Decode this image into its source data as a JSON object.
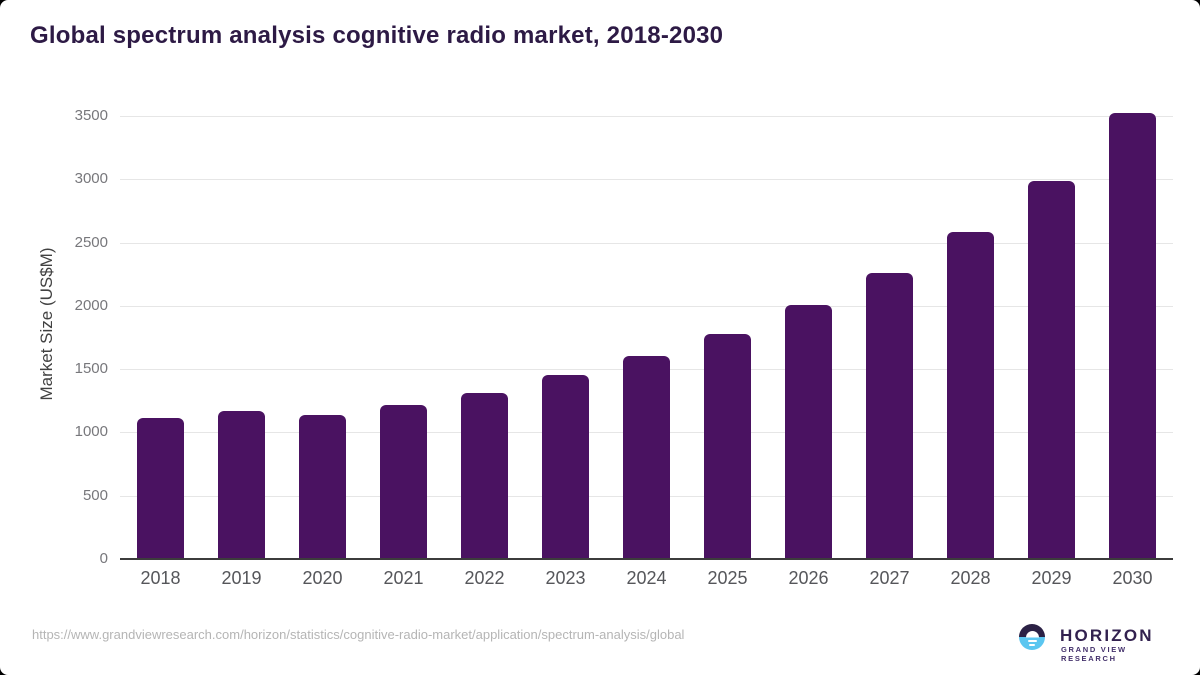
{
  "page": {
    "title": "Global spectrum analysis cognitive radio market, 2018-2030"
  },
  "chart_data": {
    "type": "bar",
    "title": "Global spectrum analysis cognitive radio market, 2018-2030",
    "categories": [
      "2018",
      "2019",
      "2020",
      "2021",
      "2022",
      "2023",
      "2024",
      "2025",
      "2026",
      "2027",
      "2028",
      "2029",
      "2030"
    ],
    "values": [
      1115,
      1170,
      1135,
      1220,
      1315,
      1450,
      1600,
      1780,
      2005,
      2260,
      2580,
      2985,
      3525
    ],
    "xlabel": "",
    "ylabel": "Market Size (US$M)",
    "ylim": [
      0,
      3500
    ],
    "yticks": [
      0,
      500,
      1000,
      1500,
      2000,
      2500,
      3000,
      3500
    ],
    "grid": "horizontal",
    "legend": "none"
  },
  "footer": {
    "source_url": "https://www.grandviewresearch.com/horizon/statistics/cognitive-radio-market/application/spectrum-analysis/global",
    "logo": {
      "brand": "HORIZON",
      "subtitle": "GRAND VIEW RESEARCH",
      "icon": "horizon-sun-circle-icon"
    }
  },
  "colors": {
    "background": "#ffffff",
    "title": "#2d1a45",
    "bar": "#4a1261",
    "gridline": "#e6e6e6",
    "axis_line": "#3c3c3c",
    "y_tick_label": "#77777b",
    "x_tick_label": "#55565a",
    "y_axis_title": "#414141",
    "url_text": "#b5b5b5",
    "logo_dark": "#2b2145",
    "logo_blue": "#5bc6f0"
  }
}
